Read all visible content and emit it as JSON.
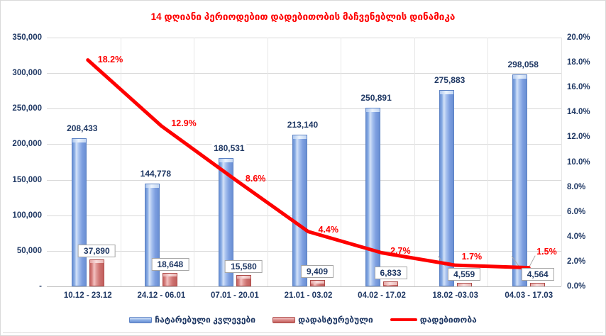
{
  "title": "14 დღიანი პერიოდებით დადებითობის მაჩვენებლის დინამიკა",
  "chart_data": {
    "type": "combo-bar-line",
    "title": "14 დღიანი პერიოდებით დადებითობის მაჩვენებლის დინამიკა",
    "categories": [
      "10.12 - 23.12",
      "24.12 - 06.01",
      "07.01 - 20.01",
      "21.01 - 03.02",
      "04.02 - 17.02",
      "18.02 -03.03",
      "04.03 - 17.03"
    ],
    "series": [
      {
        "name": "ჩატარებული კვლევები",
        "type": "bar",
        "axis": "left",
        "color": "#7da0e0",
        "values": [
          208433,
          144778,
          180531,
          213140,
          250891,
          275883,
          298058
        ],
        "labels": [
          "208,433",
          "144,778",
          "180,531",
          "213,140",
          "250,891",
          "275,883",
          "298,058"
        ]
      },
      {
        "name": "დადასტურებული",
        "type": "bar",
        "axis": "left",
        "color": "#d98583",
        "values": [
          37890,
          18648,
          15580,
          9409,
          6833,
          4559,
          4564
        ],
        "labels": [
          "37,890",
          "18,648",
          "15,580",
          "9,409",
          "6,833",
          "4,559",
          "4,564"
        ]
      },
      {
        "name": "დადებითობა",
        "type": "line",
        "axis": "right",
        "color": "#fe0000",
        "values": [
          18.2,
          12.9,
          8.6,
          4.4,
          2.7,
          1.7,
          1.5
        ],
        "labels": [
          "18.2%",
          "12.9%",
          "8.6%",
          "4.4%",
          "2.7%",
          "1.7%",
          "1.5%"
        ]
      }
    ],
    "left_axis": {
      "min": 0,
      "max": 350000,
      "ticks": [
        "350,000",
        "300,000",
        "250,000",
        "200,000",
        "150,000",
        "100,000",
        "50,000",
        "-"
      ]
    },
    "right_axis": {
      "min": 0,
      "max": 20,
      "ticks": [
        "20.0%",
        "18.0%",
        "16.0%",
        "14.0%",
        "12.0%",
        "10.0%",
        "8.0%",
        "6.0%",
        "4.0%",
        "2.0%",
        "0.0%"
      ]
    },
    "grid": true,
    "legend_position": "bottom",
    "text_color": "#1f3864",
    "title_color": "#fe0000"
  }
}
